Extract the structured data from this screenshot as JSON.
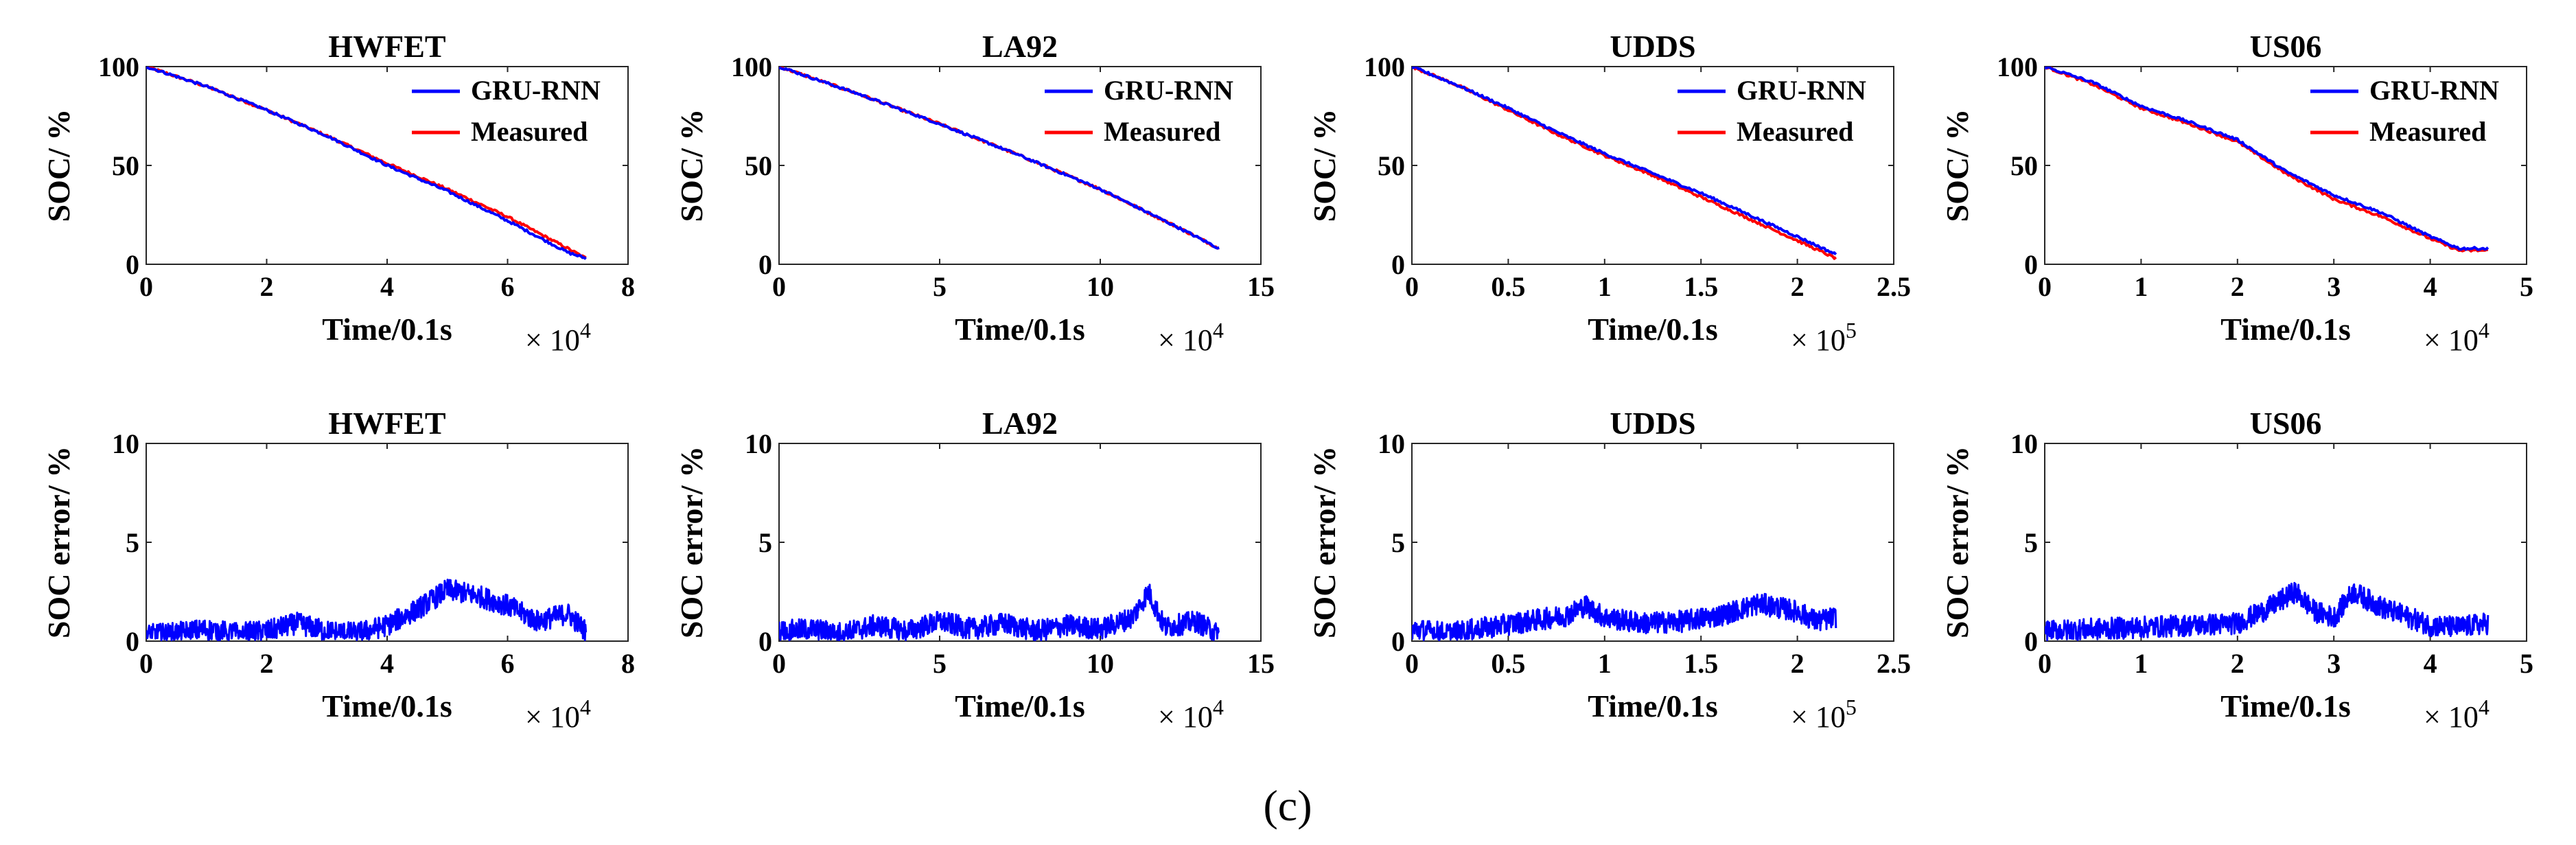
{
  "caption": "(c)",
  "colors": {
    "gru": "#0000ff",
    "measured": "#ff0000"
  },
  "legend": [
    "GRU-RNN",
    "Measured"
  ],
  "chart_data": [
    {
      "type": "line",
      "title": "HWFET",
      "xlabel": "Time/0.1s",
      "ylabel": "SOC/ %",
      "xlim": [
        0,
        8
      ],
      "ylim": [
        0,
        100
      ],
      "xticks": [
        "0",
        "2",
        "4",
        "6",
        "8"
      ],
      "yticks": [
        "0",
        "50",
        "100"
      ],
      "x_multiplier": "× 10",
      "x_exponent": "4",
      "series": [
        {
          "name": "GRU-RNN",
          "x": [
            0,
            1,
            2,
            3,
            4,
            5,
            6,
            7,
            7.3
          ],
          "y": [
            100,
            90,
            78,
            65,
            50,
            37,
            22,
            6,
            3
          ]
        },
        {
          "name": "Measured",
          "x": [
            0,
            1,
            2,
            3,
            4,
            5,
            6,
            7,
            7.3
          ],
          "y": [
            100,
            90,
            78,
            65,
            51,
            38,
            24,
            8,
            3
          ]
        }
      ]
    },
    {
      "type": "line",
      "title": "LA92",
      "xlabel": "Time/0.1s",
      "ylabel": "SOC/ %",
      "xlim": [
        0,
        15
      ],
      "ylim": [
        0,
        100
      ],
      "xticks": [
        "0",
        "5",
        "10",
        "15"
      ],
      "yticks": [
        "0",
        "50",
        "100"
      ],
      "x_multiplier": "× 10",
      "x_exponent": "4",
      "series": [
        {
          "name": "GRU-RNN",
          "x": [
            0,
            2.5,
            5,
            7.5,
            10,
            12.5,
            13.7
          ],
          "y": [
            100,
            86,
            71,
            55,
            38,
            18,
            8
          ]
        },
        {
          "name": "Measured",
          "x": [
            0,
            2.5,
            5,
            7.5,
            10,
            12.5,
            13.7
          ],
          "y": [
            100,
            86,
            71,
            55,
            38,
            18,
            8
          ]
        }
      ]
    },
    {
      "type": "line",
      "title": "UDDS",
      "xlabel": "Time/0.1s",
      "ylabel": "SOC/ %",
      "xlim": [
        0,
        2.5
      ],
      "ylim": [
        0,
        100
      ],
      "xticks": [
        "0",
        "0.5",
        "1",
        "1.5",
        "2",
        "2.5"
      ],
      "yticks": [
        "0",
        "50",
        "100"
      ],
      "x_multiplier": "× 10",
      "x_exponent": "5",
      "series": [
        {
          "name": "GRU-RNN",
          "x": [
            0,
            0.25,
            0.5,
            0.75,
            1,
            1.25,
            1.5,
            1.75,
            2,
            2.2
          ],
          "y": [
            100,
            90,
            79,
            67,
            56,
            46,
            36,
            25,
            14,
            5
          ]
        },
        {
          "name": "Measured",
          "x": [
            0,
            0.25,
            0.5,
            0.75,
            1,
            1.25,
            1.5,
            1.75,
            2,
            2.2
          ],
          "y": [
            100,
            90,
            78,
            66,
            55,
            45,
            34,
            23,
            12,
            3
          ]
        }
      ]
    },
    {
      "type": "line",
      "title": "US06",
      "xlabel": "Time/0.1s",
      "ylabel": "SOC/ %",
      "xlim": [
        0,
        5
      ],
      "ylim": [
        0,
        100
      ],
      "xticks": [
        "0",
        "1",
        "2",
        "3",
        "4",
        "5"
      ],
      "yticks": [
        "0",
        "50",
        "100"
      ],
      "x_multiplier": "× 10",
      "x_exponent": "4",
      "series": [
        {
          "name": "GRU-RNN",
          "x": [
            0,
            0.5,
            1,
            1.5,
            2,
            2.5,
            3,
            3.5,
            4,
            4.3,
            4.6
          ],
          "y": [
            100,
            92,
            80,
            72,
            63,
            47,
            35,
            26,
            14,
            8,
            8
          ]
        },
        {
          "name": "Measured",
          "x": [
            0,
            0.5,
            1,
            1.5,
            2,
            2.5,
            3,
            3.5,
            4,
            4.3,
            4.6
          ],
          "y": [
            100,
            91,
            79,
            71,
            62,
            46,
            33,
            24,
            13,
            7,
            7
          ]
        }
      ]
    },
    {
      "type": "line",
      "title": "HWFET",
      "xlabel": "Time/0.1s",
      "ylabel": "SOC error/ %",
      "xlim": [
        0,
        8
      ],
      "ylim": [
        0,
        10
      ],
      "xticks": [
        "0",
        "2",
        "4",
        "6",
        "8"
      ],
      "yticks": [
        "0",
        "5",
        "10"
      ],
      "x_multiplier": "× 10",
      "x_exponent": "4",
      "series": [
        {
          "name": "GRU-RNN",
          "x": [
            0,
            0.5,
            1,
            1.5,
            2,
            2.5,
            3,
            3.5,
            4,
            4.5,
            5,
            5.5,
            6,
            6.5,
            7,
            7.3
          ],
          "y": [
            0.3,
            0.4,
            0.6,
            0.4,
            0.5,
            0.9,
            0.5,
            0.4,
            0.8,
            1.6,
            2.6,
            2.3,
            1.8,
            1.0,
            1.4,
            0.5
          ]
        }
      ]
    },
    {
      "type": "line",
      "title": "LA92",
      "xlabel": "Time/0.1s",
      "ylabel": "SOC error/ %",
      "xlim": [
        0,
        15
      ],
      "ylim": [
        0,
        10
      ],
      "xticks": [
        "0",
        "5",
        "10",
        "15"
      ],
      "yticks": [
        "0",
        "5",
        "10"
      ],
      "x_multiplier": "× 10",
      "x_exponent": "4",
      "series": [
        {
          "name": "GRU-RNN",
          "x": [
            0,
            1,
            2,
            3,
            4,
            5,
            6,
            7,
            8,
            9,
            10,
            11,
            11.5,
            12,
            13,
            13.7
          ],
          "y": [
            0.5,
            0.6,
            0.4,
            0.8,
            0.5,
            1.0,
            0.6,
            0.9,
            0.5,
            0.8,
            0.6,
            1.2,
            2.5,
            0.7,
            1.0,
            0.3
          ]
        }
      ]
    },
    {
      "type": "line",
      "title": "UDDS",
      "xlabel": "Time/0.1s",
      "ylabel": "SOC error/ %",
      "xlim": [
        0,
        2.5
      ],
      "ylim": [
        0,
        10
      ],
      "xticks": [
        "0",
        "0.5",
        "1",
        "1.5",
        "2",
        "2.5"
      ],
      "yticks": [
        "0",
        "5",
        "10"
      ],
      "x_multiplier": "× 10",
      "x_exponent": "5",
      "series": [
        {
          "name": "GRU-RNN",
          "x": [
            0,
            0.2,
            0.4,
            0.6,
            0.8,
            0.9,
            1.0,
            1.2,
            1.4,
            1.6,
            1.8,
            2.0,
            2.1,
            2.2
          ],
          "y": [
            0.6,
            0.4,
            0.7,
            1.0,
            1.3,
            1.8,
            1.2,
            0.9,
            1.0,
            1.3,
            1.9,
            1.5,
            1.0,
            1.2
          ]
        }
      ]
    },
    {
      "type": "line",
      "title": "US06",
      "xlabel": "Time/0.1s",
      "ylabel": "SOC error/ %",
      "xlim": [
        0,
        5
      ],
      "ylim": [
        0,
        10
      ],
      "xticks": [
        "0",
        "1",
        "2",
        "3",
        "4",
        "5"
      ],
      "yticks": [
        "0",
        "5",
        "10"
      ],
      "x_multiplier": "× 10",
      "x_exponent": "4",
      "series": [
        {
          "name": "GRU-RNN",
          "x": [
            0,
            0.5,
            1,
            1.5,
            2,
            2.3,
            2.6,
            2.8,
            3,
            3.2,
            3.5,
            4,
            4.3,
            4.6
          ],
          "y": [
            0.5,
            0.6,
            0.7,
            0.8,
            0.9,
            1.6,
            2.5,
            1.5,
            1.2,
            2.5,
            1.7,
            0.8,
            0.7,
            0.9
          ]
        }
      ]
    }
  ]
}
